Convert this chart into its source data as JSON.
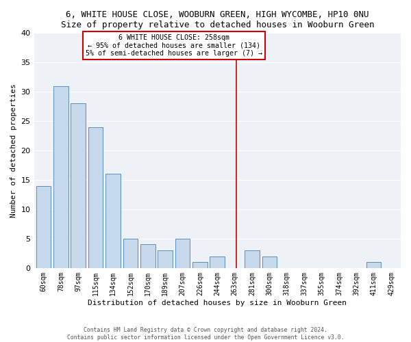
{
  "title": "6, WHITE HOUSE CLOSE, WOOBURN GREEN, HIGH WYCOMBE, HP10 0NU",
  "subtitle": "Size of property relative to detached houses in Wooburn Green",
  "xlabel": "Distribution of detached houses by size in Wooburn Green",
  "ylabel": "Number of detached properties",
  "bar_labels": [
    "60sqm",
    "78sqm",
    "97sqm",
    "115sqm",
    "134sqm",
    "152sqm",
    "170sqm",
    "189sqm",
    "207sqm",
    "226sqm",
    "244sqm",
    "263sqm",
    "281sqm",
    "300sqm",
    "318sqm",
    "337sqm",
    "355sqm",
    "374sqm",
    "392sqm",
    "411sqm",
    "429sqm"
  ],
  "bar_values": [
    14,
    31,
    28,
    24,
    16,
    5,
    4,
    3,
    5,
    1,
    2,
    0,
    3,
    2,
    0,
    0,
    0,
    0,
    0,
    1,
    0
  ],
  "bar_color": "#c5d8ec",
  "bar_edge_color": "#5b8db8",
  "ylim": [
    0,
    40
  ],
  "yticks": [
    0,
    5,
    10,
    15,
    20,
    25,
    30,
    35,
    40
  ],
  "vline_color": "#cc0000",
  "annotation_title": "6 WHITE HOUSE CLOSE: 258sqm",
  "annotation_line1": "← 95% of detached houses are smaller (134)",
  "annotation_line2": "5% of semi-detached houses are larger (7) →",
  "annotation_box_color": "#cc0000",
  "bg_color": "#eef2f7",
  "grid_color": "#ffffff",
  "footer1": "Contains HM Land Registry data © Crown copyright and database right 2024.",
  "footer2": "Contains public sector information licensed under the Open Government Licence v3.0."
}
